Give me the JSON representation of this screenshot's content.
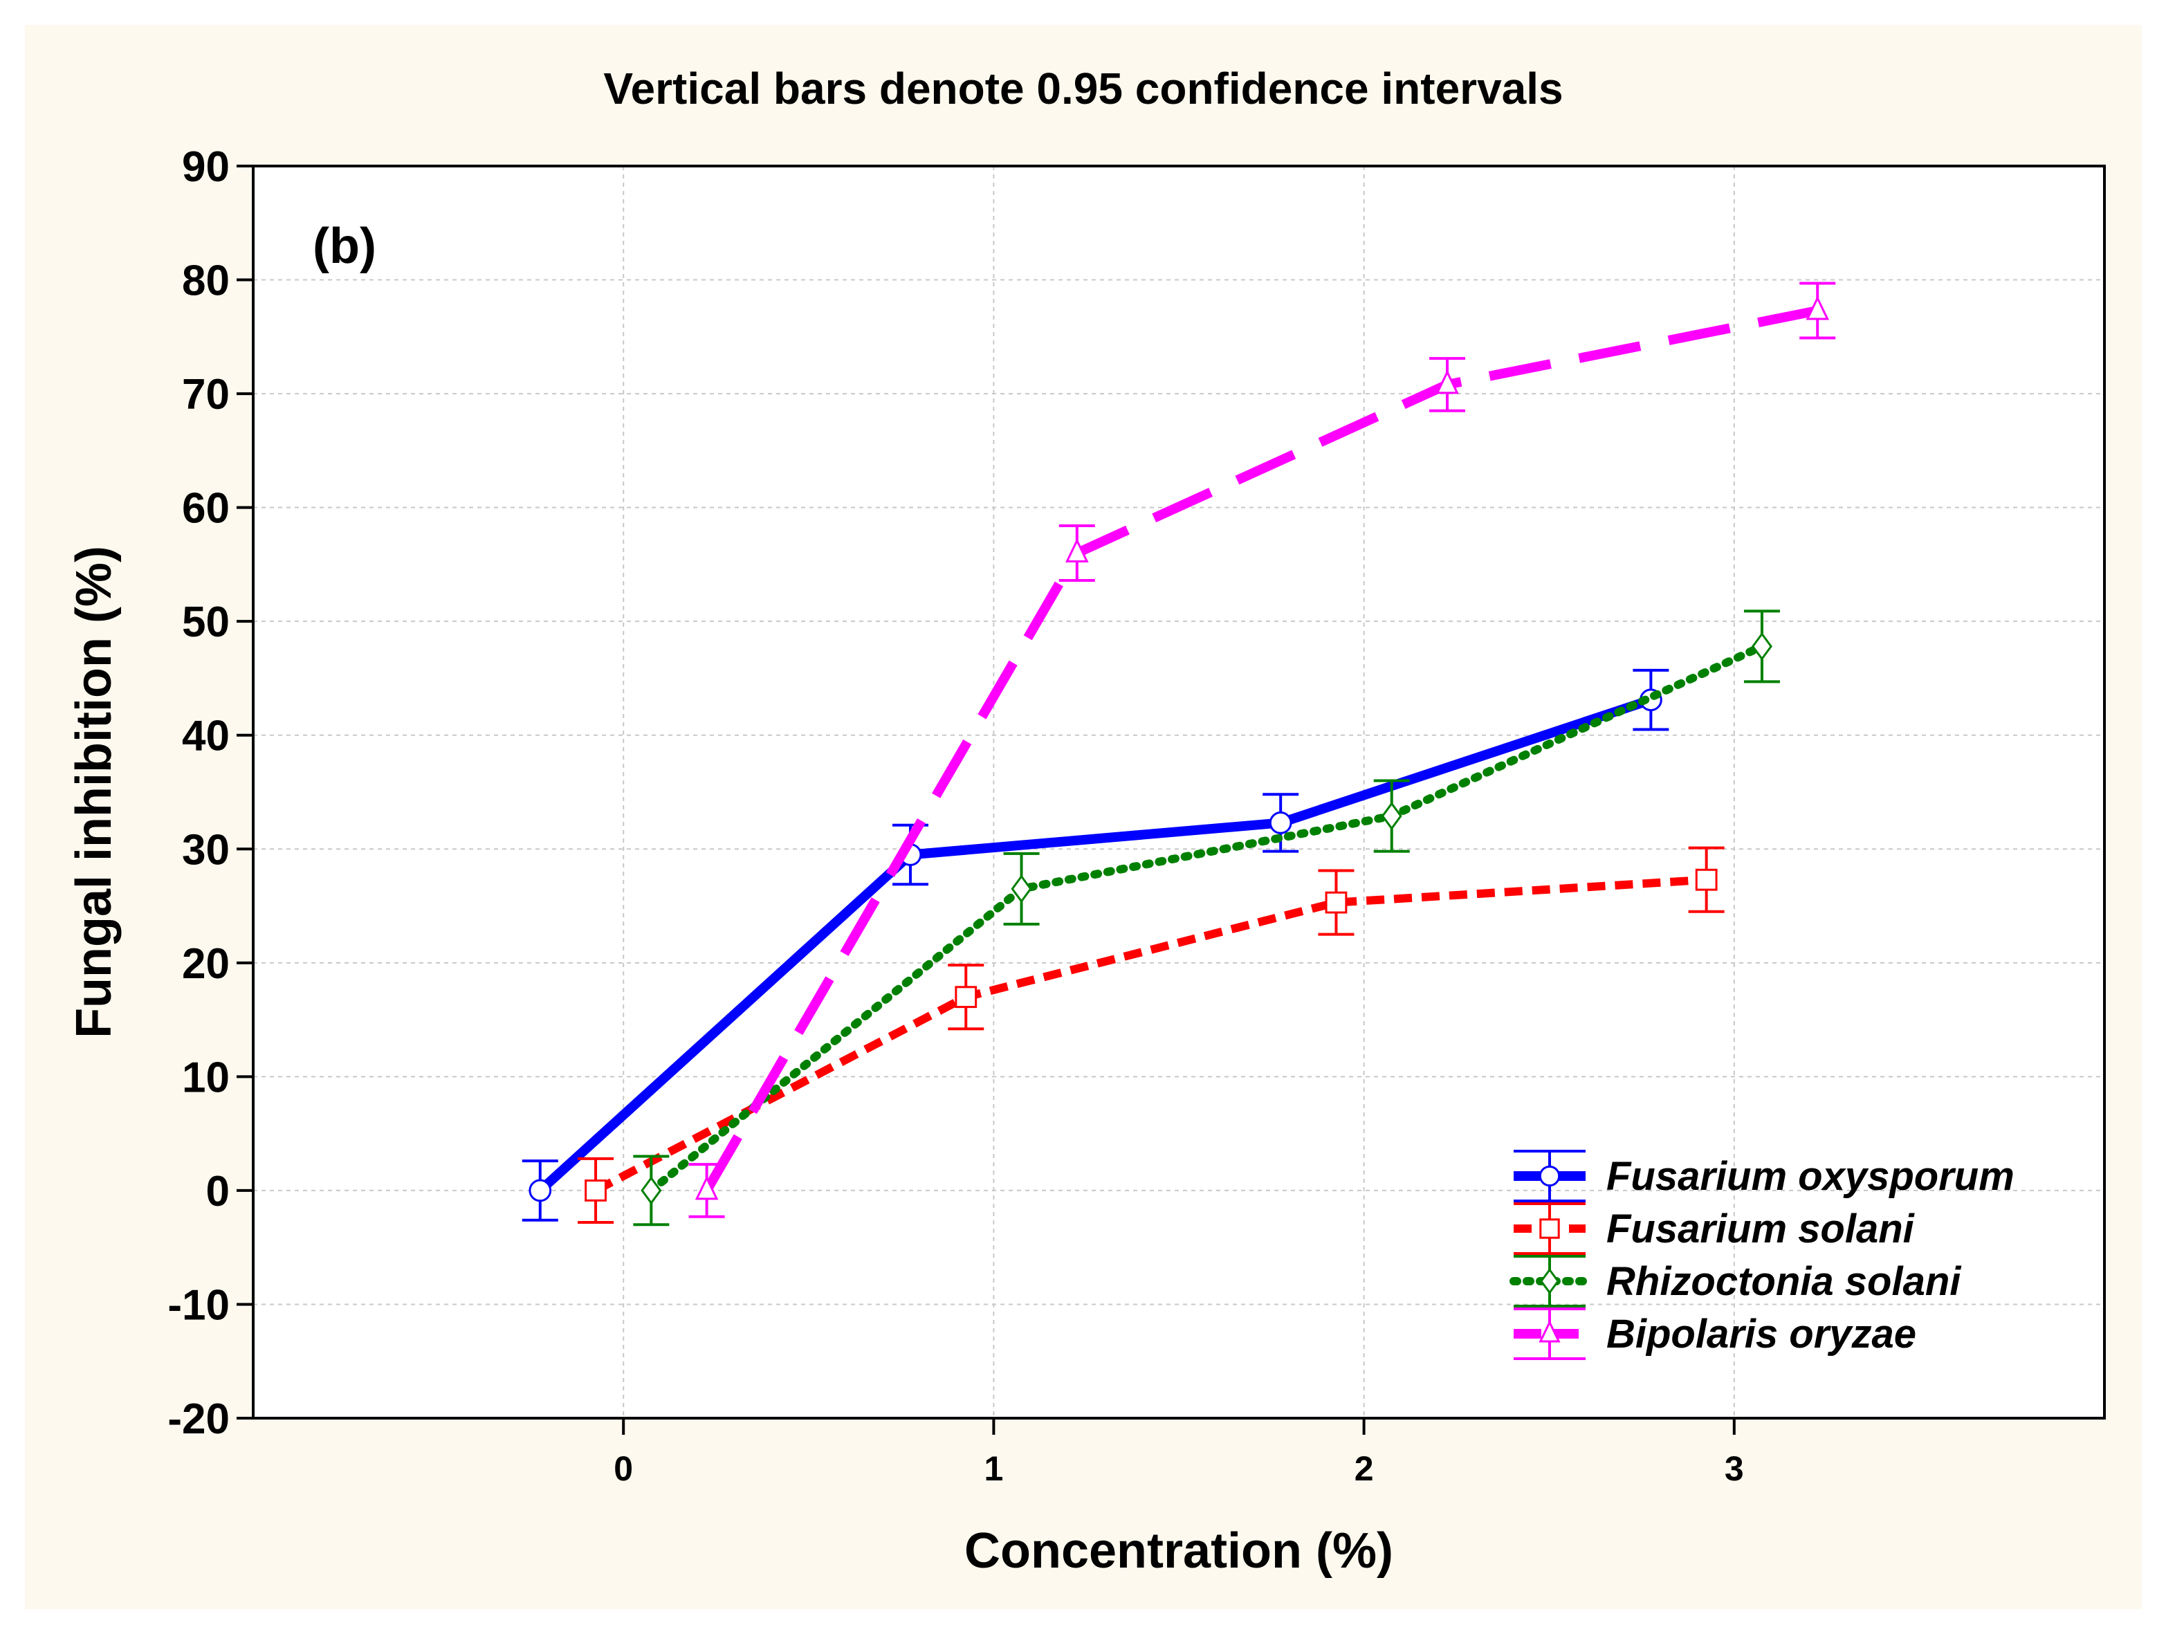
{
  "chart_data": {
    "type": "line",
    "title": "Vertical bars denote 0.95 confidence intervals",
    "panel_label": "(b)",
    "xlabel": "Concentration (%)",
    "ylabel": "Fungal inhibition (%)",
    "xlim": [
      -1,
      4
    ],
    "ylim": [
      -20,
      90
    ],
    "x_ticks": [
      0,
      1,
      2,
      3
    ],
    "y_ticks": [
      -20,
      -10,
      0,
      10,
      20,
      30,
      40,
      50,
      60,
      70,
      80,
      90
    ],
    "grid": true,
    "legend_position": "bottom-right",
    "colors": {
      "background": "#fdf9ee",
      "grid": "#c8c8c8"
    },
    "series": [
      {
        "name": "Fusarium oxysporum",
        "color": "#0000ff",
        "style": "solid",
        "marker": "circle",
        "offset": -0.225,
        "x": [
          0,
          1,
          2,
          3
        ],
        "values": [
          0,
          29.5,
          32.3,
          43.1
        ],
        "ci": [
          2.6,
          2.6,
          2.5,
          2.6
        ]
      },
      {
        "name": "Fusarium solani",
        "color": "#ff0000",
        "style": "dashed",
        "marker": "square",
        "offset": -0.075,
        "x": [
          0,
          1,
          2,
          3
        ],
        "values": [
          0,
          17,
          25.3,
          27.3
        ],
        "ci": [
          2.8,
          2.8,
          2.8,
          2.8
        ]
      },
      {
        "name": "Rhizoctonia solani",
        "color": "#008000",
        "style": "dotted",
        "marker": "diamond",
        "offset": 0.075,
        "x": [
          0,
          1,
          2,
          3
        ],
        "values": [
          0,
          26.5,
          32.9,
          47.8
        ],
        "ci": [
          3.0,
          3.1,
          3.1,
          3.1
        ]
      },
      {
        "name": "Bipolaris oryzae",
        "color": "#ff00ff",
        "style": "longdash",
        "marker": "triangle",
        "offset": 0.225,
        "x": [
          0,
          1,
          2,
          3
        ],
        "values": [
          0,
          56,
          70.8,
          77.3
        ],
        "ci": [
          2.3,
          2.4,
          2.3,
          2.4
        ]
      }
    ]
  }
}
